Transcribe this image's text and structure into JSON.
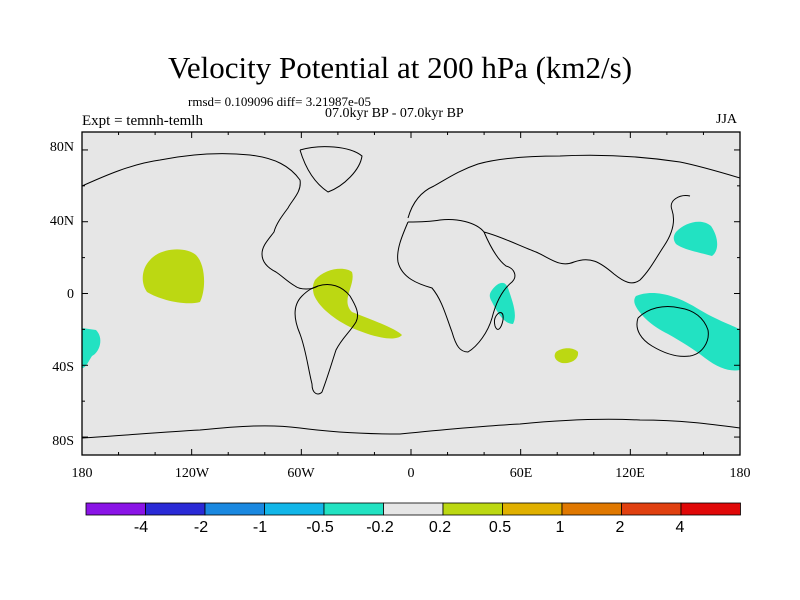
{
  "title": "Velocity Potential at 200 hPa (km2/s)",
  "stats": "rmsd= 0.109096 diff= 3.21987e-05",
  "experiment": "Expt = temnh-temlh",
  "period": "07.0kyr BP - 07.0kyr BP",
  "season": "JJA",
  "map": {
    "background": "#e6e6e6",
    "lat_ticks": [
      "80N",
      "40N",
      "0",
      "40S",
      "80S"
    ],
    "lon_ticks": [
      "180",
      "120W",
      "60W",
      "0",
      "60E",
      "120E",
      "180"
    ],
    "positive_color": "#bcd812",
    "negative_color": "#22e2c2",
    "anomalies": [
      {
        "name": "east-pacific-positive",
        "sign": "+",
        "lon": -128,
        "lat": 10
      },
      {
        "name": "south-america-positive",
        "sign": "+",
        "lon": -43,
        "lat": -8
      },
      {
        "name": "indian-ocean-positive",
        "sign": "+",
        "lon": 84,
        "lat": -33
      },
      {
        "name": "south-pacific-negative",
        "sign": "-",
        "lon": -177,
        "lat": -30
      },
      {
        "name": "east-africa-negative",
        "sign": "-",
        "lon": 51,
        "lat": -4
      },
      {
        "name": "northwest-pacific-negative",
        "sign": "-",
        "lon": 161,
        "lat": 32
      },
      {
        "name": "australia-negative",
        "sign": "-",
        "lon": 150,
        "lat": -23
      }
    ]
  },
  "colorbar": {
    "labels": [
      "-4",
      "-2",
      "-1",
      "-0.5",
      "-0.2",
      "0.2",
      "0.5",
      "1",
      "2",
      "4"
    ],
    "colors": [
      "#8a14e6",
      "#2a2ad6",
      "#1a88e0",
      "#12b6e8",
      "#22e2c2",
      "#e6e6e6",
      "#bcd812",
      "#e0b000",
      "#e07800",
      "#e04010",
      "#e00808"
    ]
  }
}
